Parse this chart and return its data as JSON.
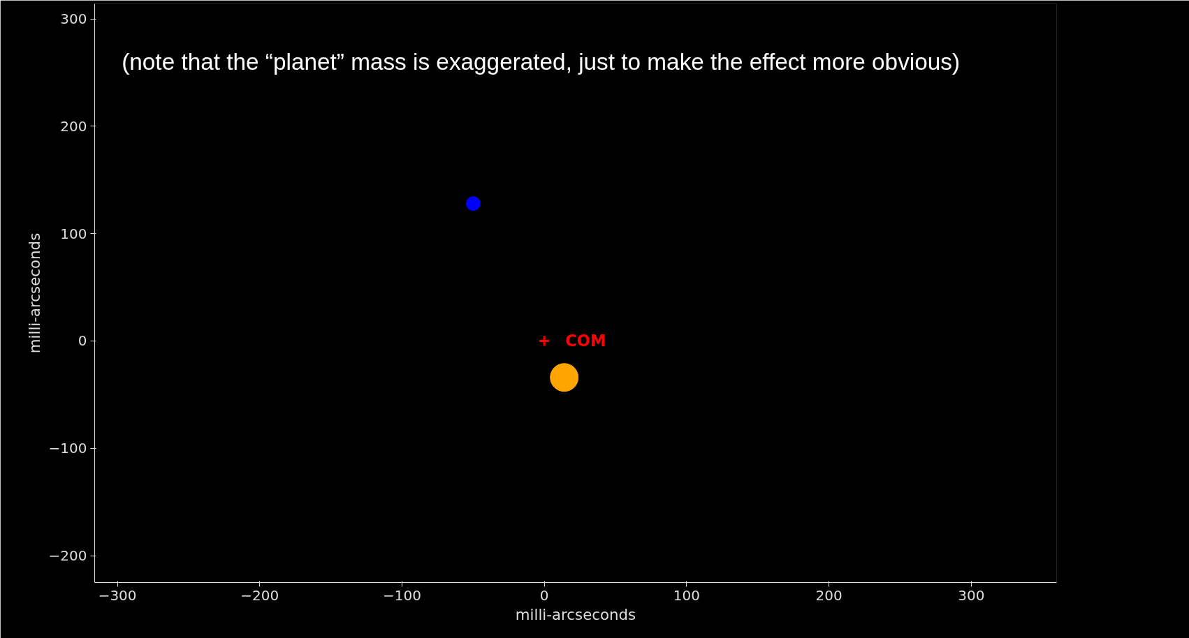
{
  "chart_data": {
    "type": "bubble",
    "xlabel": "milli-arcseconds",
    "ylabel": "milli-arcseconds",
    "annotations": [
      "(note that the “planet” mass is exaggerated, just to make the effect more obvious)",
      {
        "text": "COM",
        "x": 0,
        "y": 0
      }
    ],
    "series": [
      {
        "color": "#0000ff",
        "x": [
          -50
        ],
        "values": [
          128
        ],
        "sizes": [
          0.25
        ]
      },
      {
        "color": "#ffa500",
        "x": [
          14
        ],
        "values": [
          -34
        ],
        "sizes": [
          1
        ]
      },
      {
        "type": "scatter",
        "marker": "cross",
        "color": "#ff0000",
        "x": [
          0
        ],
        "values": [
          0
        ]
      }
    ],
    "xlim": [
      -316,
      360
    ],
    "ylim": [
      -225,
      314
    ],
    "xticks": [
      {
        "value": -300,
        "label": "−300"
      },
      {
        "value": -200,
        "label": "−200"
      },
      {
        "value": -100,
        "label": "−100"
      },
      0,
      100,
      200,
      300
    ],
    "yticks": [
      {
        "value": -200,
        "label": "−200"
      },
      {
        "value": -100,
        "label": "−100"
      },
      0,
      100,
      200,
      300
    ],
    "grid": false
  }
}
